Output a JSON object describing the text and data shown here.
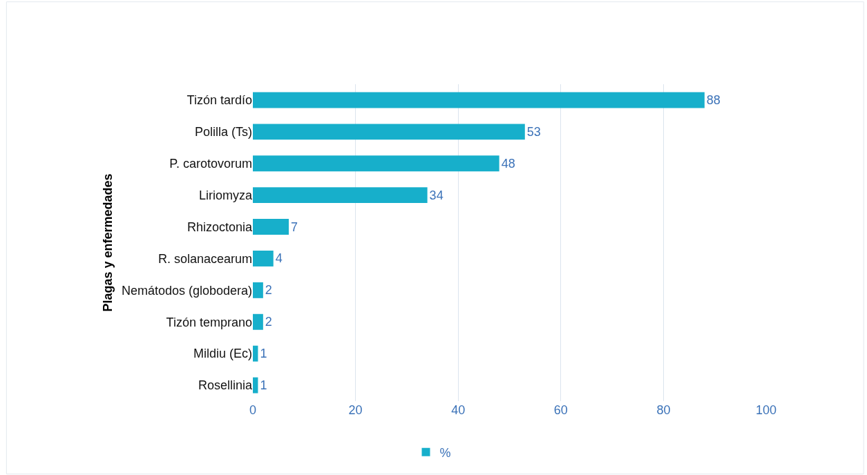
{
  "chart_data": {
    "type": "bar",
    "orientation": "horizontal",
    "ylabel": "Plagas y enfermedades",
    "categories": [
      "Tizón tardío",
      "Polilla (Ts)",
      "P. carotovorum",
      "Liriomyza",
      "Rhizoctonia",
      "R. solanacearum",
      "Nemátodos (globodera)",
      "Tizón temprano",
      "Mildiu (Ec)",
      "Rosellinia"
    ],
    "series": [
      {
        "name": "%",
        "color": "#17afcb",
        "values": [
          88,
          53,
          48,
          34,
          7,
          4,
          2,
          2,
          1,
          1
        ]
      }
    ],
    "xlim": [
      0,
      100
    ],
    "xticks": [
      0,
      20,
      40,
      60,
      80,
      100
    ],
    "grid": "x",
    "data_labels": true,
    "legend": "bottom"
  }
}
